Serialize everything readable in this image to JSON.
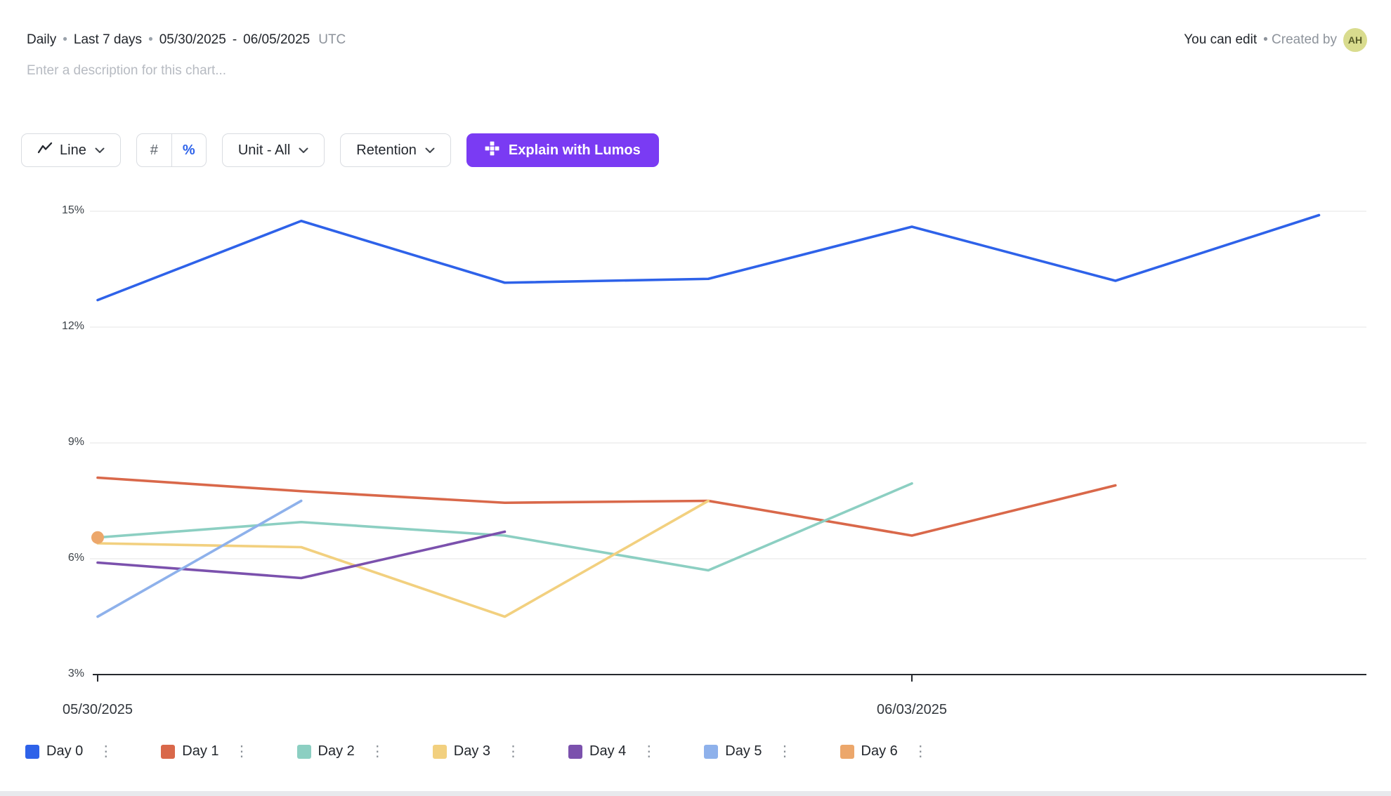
{
  "header": {
    "granularity": "Daily",
    "dot": "•",
    "range": "Last 7 days",
    "start_date": "05/30/2025",
    "dash": "-",
    "end_date": "06/05/2025",
    "timezone": "UTC",
    "permission": "You can edit",
    "created_by": "• Created by",
    "avatar": "AH"
  },
  "description_placeholder": "Enter a description for this chart...",
  "toolbar": {
    "chart_type_label": "Line",
    "count_label": "#",
    "percent_label": "%",
    "unit_label": "Unit - All",
    "metric_label": "Retention",
    "lumos_label": "Explain with Lumos"
  },
  "icons": {
    "kebab": "⋮"
  },
  "colors": {
    "accent_blue": "#2d62ea",
    "lumos_purple": "#7a3bf3",
    "axis": "#26292e",
    "gridline": "#ededed"
  },
  "chart_data": {
    "type": "line",
    "title": "",
    "unit": "%",
    "ylim": [
      3,
      15
    ],
    "x_count": 7,
    "grid": "horizontal",
    "legend_position": "bottom",
    "y_ticks": [
      {
        "value": 15,
        "label": "15%"
      },
      {
        "value": 12,
        "label": "12%"
      },
      {
        "value": 9,
        "label": "9%"
      },
      {
        "value": 6,
        "label": "6%"
      },
      {
        "value": 3,
        "label": "3%"
      }
    ],
    "x_ticks": [
      {
        "day_index": 0,
        "label": "05/30/2025"
      },
      {
        "day_index": 4,
        "label": "06/03/2025"
      }
    ],
    "series": [
      {
        "name": "Day 0",
        "color": "#2e62e9",
        "values": [
          12.7,
          14.75,
          13.15,
          13.25,
          14.6,
          13.2,
          14.9
        ]
      },
      {
        "name": "Day 1",
        "color": "#d9684a",
        "values": [
          8.1,
          7.75,
          7.45,
          7.5,
          6.6,
          7.9
        ]
      },
      {
        "name": "Day 2",
        "color": "#8ccfc2",
        "values": [
          6.55,
          6.95,
          6.6,
          5.7,
          7.95
        ]
      },
      {
        "name": "Day 3",
        "color": "#f2d07f",
        "values": [
          6.4,
          6.3,
          4.5,
          7.5
        ]
      },
      {
        "name": "Day 4",
        "color": "#7b51ad",
        "values": [
          5.9,
          5.5,
          6.7
        ]
      },
      {
        "name": "Day 5",
        "color": "#8eb1eb",
        "values": [
          4.5,
          7.5
        ]
      },
      {
        "name": "Day 6",
        "color": "#eca76b",
        "values": [
          6.55
        ]
      }
    ]
  }
}
